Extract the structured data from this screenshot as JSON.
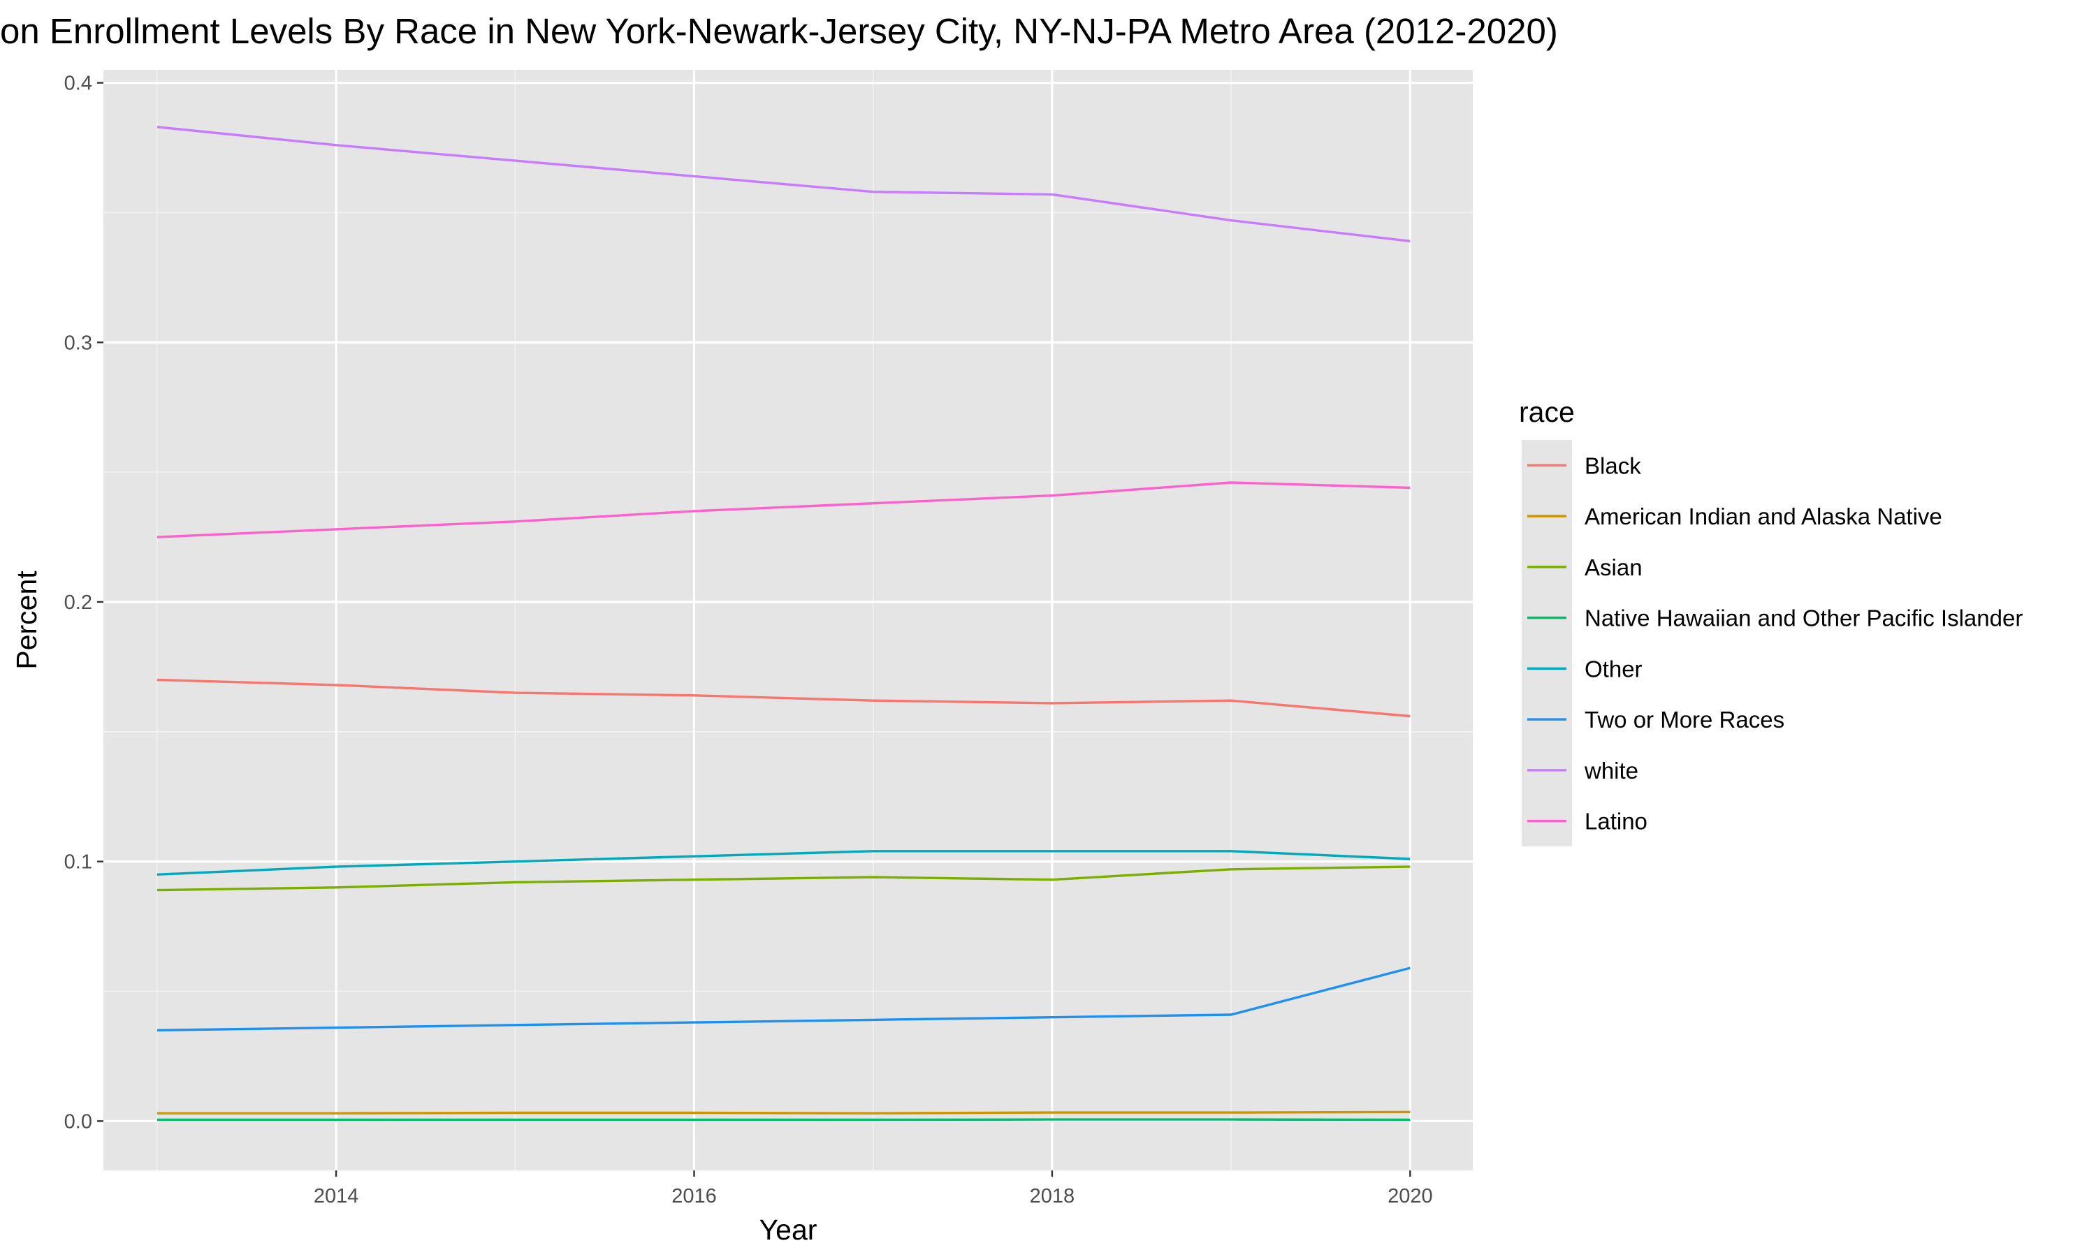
{
  "chart_data": {
    "type": "line",
    "title": "on Enrollment Levels By Race in New York-Newark-Jersey City, NY-NJ-PA Metro Area (2012-2020)",
    "xlabel": "Year",
    "ylabel": "Percent",
    "xlim": [
      2012.7,
      2020.35
    ],
    "ylim": [
      -0.019,
      0.405
    ],
    "x_ticks": [
      2014,
      2016,
      2018,
      2020
    ],
    "x_tick_labels": [
      "2014",
      "2016",
      "2018",
      "2020"
    ],
    "y_ticks": [
      0.0,
      0.1,
      0.2,
      0.3,
      0.4
    ],
    "y_tick_labels": [
      "0.0",
      "0.1",
      "0.2",
      "0.3",
      "0.4"
    ],
    "grid": true,
    "panel_background": "#e5e5e5",
    "legend": {
      "title": "race",
      "position": "right"
    },
    "x": [
      2013,
      2014,
      2015,
      2016,
      2017,
      2018,
      2019,
      2020
    ],
    "series": [
      {
        "name": "Black",
        "color": "#F8766D",
        "values": [
          0.17,
          0.168,
          0.165,
          0.164,
          0.162,
          0.161,
          0.162,
          0.156
        ]
      },
      {
        "name": "American Indian and Alaska Native",
        "color": "#CD9600",
        "values": [
          0.003,
          0.003,
          0.0032,
          0.0032,
          0.003,
          0.0033,
          0.0033,
          0.0035
        ]
      },
      {
        "name": "Asian",
        "color": "#7CAE00",
        "values": [
          0.089,
          0.09,
          0.092,
          0.093,
          0.094,
          0.093,
          0.097,
          0.098
        ]
      },
      {
        "name": "Native Hawaiian and Other Pacific Islander",
        "color": "#00BE67",
        "values": [
          0.0005,
          0.0005,
          0.0005,
          0.0005,
          0.0005,
          0.0006,
          0.0006,
          0.0005
        ]
      },
      {
        "name": "Other",
        "color": "#00A9BC",
        "values": [
          0.095,
          0.098,
          0.1,
          0.102,
          0.104,
          0.104,
          0.104,
          0.101
        ]
      },
      {
        "name": "Two or More Races",
        "color": "#1E90F0",
        "values": [
          0.035,
          0.036,
          0.037,
          0.038,
          0.039,
          0.04,
          0.041,
          0.059
        ]
      },
      {
        "name": "white",
        "color": "#C77CFF",
        "values": [
          0.383,
          0.376,
          0.37,
          0.364,
          0.358,
          0.357,
          0.347,
          0.339
        ]
      },
      {
        "name": "Latino",
        "color": "#FF61CC",
        "values": [
          0.225,
          0.228,
          0.231,
          0.235,
          0.238,
          0.241,
          0.246,
          0.244
        ]
      }
    ]
  }
}
